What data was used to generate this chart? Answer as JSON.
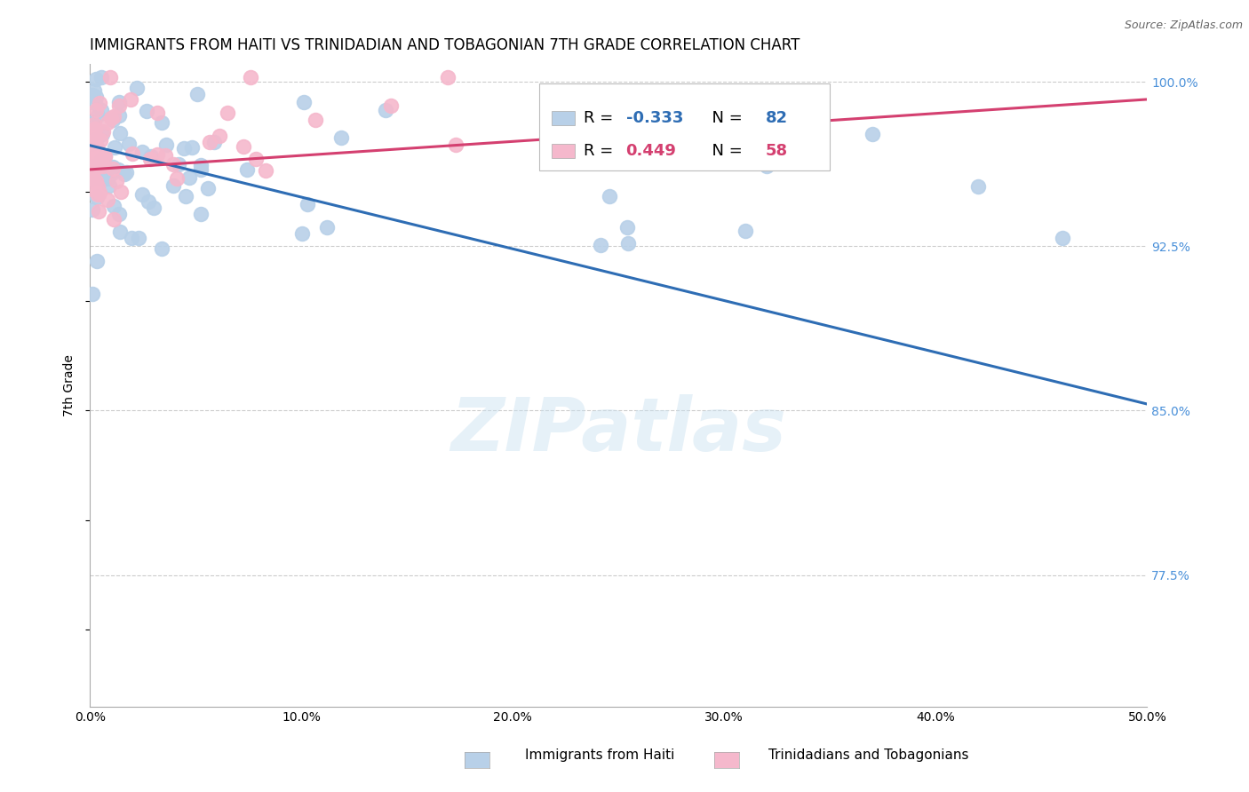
{
  "title": "IMMIGRANTS FROM HAITI VS TRINIDADIAN AND TOBAGONIAN 7TH GRADE CORRELATION CHART",
  "source": "Source: ZipAtlas.com",
  "ylabel": "7th Grade",
  "xlim": [
    0.0,
    0.5
  ],
  "ylim": [
    0.715,
    1.008
  ],
  "xticks": [
    0.0,
    0.1,
    0.2,
    0.3,
    0.4,
    0.5
  ],
  "xticklabels": [
    "0.0%",
    "10.0%",
    "20.0%",
    "30.0%",
    "40.0%",
    "50.0%"
  ],
  "yticks": [
    0.775,
    0.85,
    0.925,
    1.0
  ],
  "yticklabels": [
    "77.5%",
    "85.0%",
    "92.5%",
    "100.0%"
  ],
  "haiti_R": -0.333,
  "haiti_N": 82,
  "tnt_R": 0.449,
  "tnt_N": 58,
  "haiti_color": "#b8d0e8",
  "tnt_color": "#f5b8cc",
  "haiti_line_color": "#2E6DB4",
  "tnt_line_color": "#d44070",
  "haiti_line_x0": 0.0,
  "haiti_line_y0": 0.971,
  "haiti_line_x1": 0.5,
  "haiti_line_y1": 0.853,
  "tnt_line_x0": 0.0,
  "tnt_line_y0": 0.96,
  "tnt_line_x1": 0.5,
  "tnt_line_y1": 0.992,
  "watermark": "ZIPatlas",
  "background_color": "#ffffff",
  "grid_color": "#cccccc",
  "title_fontsize": 12,
  "axis_label_color": "#4a90d9",
  "legend_haiti_label": "Immigrants from Haiti",
  "legend_tnt_label": "Trinidadians and Tobagonians"
}
